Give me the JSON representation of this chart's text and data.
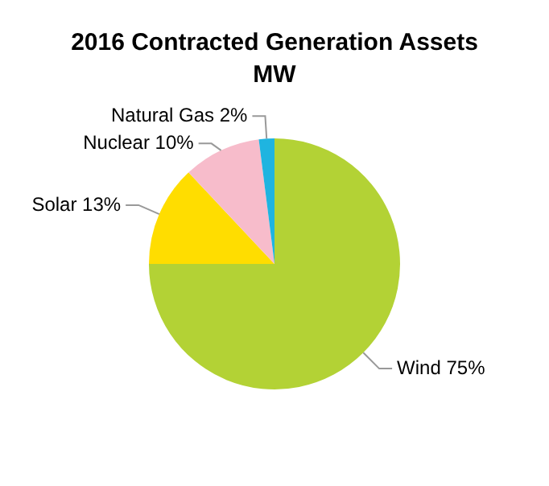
{
  "chart_data": {
    "type": "pie",
    "title": "2016 Contracted Generation Assets",
    "subtitle": "MW",
    "categories": [
      "Wind",
      "Solar",
      "Nuclear",
      "Natural Gas"
    ],
    "values": [
      75,
      13,
      10,
      2
    ],
    "value_labels": [
      "75%",
      "13%",
      "10%",
      "2%"
    ],
    "colors": [
      "#b3d235",
      "#ffdd00",
      "#f7bccb",
      "#1fb4e0"
    ],
    "legend": false
  }
}
